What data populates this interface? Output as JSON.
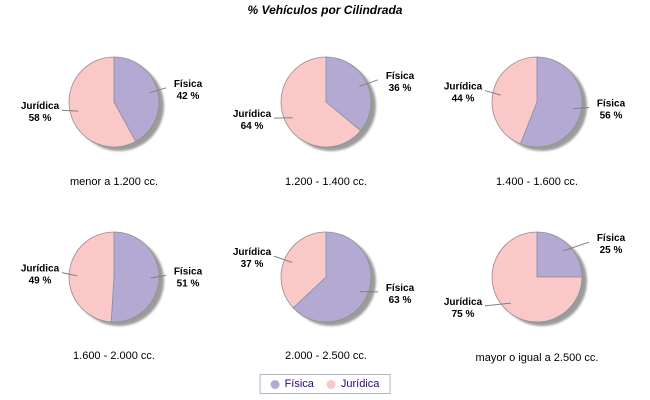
{
  "title": "% Vehículos por Cilindrada",
  "chart_data": {
    "type": "pie",
    "title": "% Vehículos por Cilindrada",
    "layout": "2 rows x 3 columns, legend bottom center",
    "series": [
      {
        "name": "Física",
        "color": "#b3a9d2"
      },
      {
        "name": "Jurídica",
        "color": "#fbc8c8"
      }
    ],
    "shadow_color": "#9b9b9b",
    "outline_color": "#909090",
    "callout_color": "#808080",
    "legend_text_color": "#330080",
    "charts": [
      {
        "caption": "menor a 1.200 cc.",
        "slices": [
          {
            "label": "Física",
            "value": 42,
            "value_label": "42 %"
          },
          {
            "label": "Jurídica",
            "value": 58,
            "value_label": "58 %"
          }
        ]
      },
      {
        "caption": "1.200 - 1.400 cc.",
        "slices": [
          {
            "label": "Física",
            "value": 36,
            "value_label": "36 %"
          },
          {
            "label": "Jurídica",
            "value": 64,
            "value_label": "64 %"
          }
        ]
      },
      {
        "caption": "1.400 - 1.600 cc.",
        "slices": [
          {
            "label": "Física",
            "value": 56,
            "value_label": "56 %"
          },
          {
            "label": "Jurídica",
            "value": 44,
            "value_label": "44 %"
          }
        ]
      },
      {
        "caption": "1.600 - 2.000 cc.",
        "slices": [
          {
            "label": "Física",
            "value": 51,
            "value_label": "51 %"
          },
          {
            "label": "Jurídica",
            "value": 49,
            "value_label": "49 %"
          }
        ]
      },
      {
        "caption": "2.000 - 2.500 cc.",
        "slices": [
          {
            "label": "Física",
            "value": 63,
            "value_label": "63 %"
          },
          {
            "label": "Jurídica",
            "value": 37,
            "value_label": "37 %"
          }
        ]
      },
      {
        "caption": "mayor o igual a 2.500 cc.",
        "slices": [
          {
            "label": "Física",
            "value": 25,
            "value_label": "25 %"
          },
          {
            "label": "Jurídica",
            "value": 75,
            "value_label": "75 %"
          }
        ]
      }
    ]
  }
}
